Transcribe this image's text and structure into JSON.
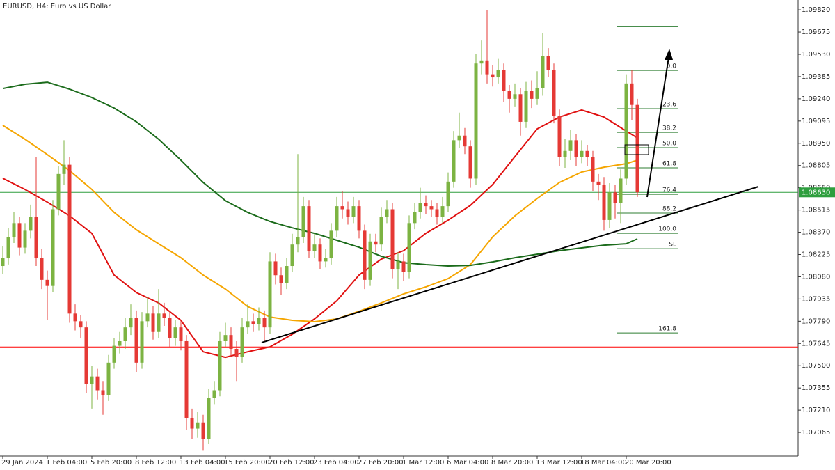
{
  "chart_data": {
    "type": "candlestick",
    "title": "EURUSD, H4:  Euro vs US Dollar",
    "up_color": "#7cb342",
    "down_color": "#e53935",
    "ylim": [
      1.06911,
      1.09884
    ],
    "yticks": [
      {
        "value": 1.0982,
        "label": "1.09820"
      },
      {
        "value": 1.09675,
        "label": "1.09675"
      },
      {
        "value": 1.0953,
        "label": "1.09530"
      },
      {
        "value": 1.09385,
        "label": "1.09385"
      },
      {
        "value": 1.0924,
        "label": "1.09240"
      },
      {
        "value": 1.09095,
        "label": "1.09095"
      },
      {
        "value": 1.0895,
        "label": "1.08950"
      },
      {
        "value": 1.08805,
        "label": "1.08805"
      },
      {
        "value": 1.0866,
        "label": "1.08660"
      },
      {
        "value": 1.08515,
        "label": "1.08515"
      },
      {
        "value": 1.0837,
        "label": "1.08370"
      },
      {
        "value": 1.08225,
        "label": "1.08225"
      },
      {
        "value": 1.0808,
        "label": "1.08080"
      },
      {
        "value": 1.07935,
        "label": "1.07935"
      },
      {
        "value": 1.0779,
        "label": "1.07790"
      },
      {
        "value": 1.07645,
        "label": "1.07645"
      },
      {
        "value": 1.075,
        "label": "1.07500"
      },
      {
        "value": 1.07355,
        "label": "1.07355"
      },
      {
        "value": 1.0721,
        "label": "1.07210"
      },
      {
        "value": 1.07065,
        "label": "1.07065"
      }
    ],
    "categories": [
      "29 Jan 2024",
      null,
      null,
      null,
      null,
      null,
      null,
      null,
      "1 Feb 04:00",
      null,
      null,
      null,
      null,
      null,
      null,
      null,
      "5 Feb 20:00",
      null,
      null,
      null,
      null,
      null,
      null,
      null,
      "8 Feb 12:00",
      null,
      null,
      null,
      null,
      null,
      null,
      null,
      "13 Feb 04:00",
      null,
      null,
      null,
      null,
      null,
      null,
      null,
      "15 Feb 20:00",
      null,
      null,
      null,
      null,
      null,
      null,
      null,
      "20 Feb 12:00",
      null,
      null,
      null,
      null,
      null,
      null,
      null,
      "23 Feb 04:00",
      null,
      null,
      null,
      null,
      null,
      null,
      null,
      "27 Feb 20:00",
      null,
      null,
      null,
      null,
      null,
      null,
      null,
      "1 Mar 12:00",
      null,
      null,
      null,
      null,
      null,
      null,
      null,
      "6 Mar 04:00",
      null,
      null,
      null,
      null,
      null,
      null,
      null,
      "8 Mar 20:00",
      null,
      null,
      null,
      null,
      null,
      null,
      null,
      "13 Mar 12:00",
      null,
      null,
      null,
      null,
      null,
      null,
      null,
      "18 Mar 04:00",
      null,
      null,
      null,
      null,
      null,
      null,
      null,
      "20 Mar 20:00",
      null,
      null
    ],
    "ohlc": [
      [
        1.0815,
        1.0828,
        1.081,
        1.082
      ],
      [
        1.082,
        1.084,
        1.0816,
        1.0834
      ],
      [
        1.0834,
        1.085,
        1.083,
        1.0843
      ],
      [
        1.0843,
        1.0847,
        1.0822,
        1.0827
      ],
      [
        1.0827,
        1.0843,
        1.0823,
        1.0838
      ],
      [
        1.0838,
        1.0855,
        1.0833,
        1.0847
      ],
      [
        1.0847,
        1.0886,
        1.0815,
        1.082
      ],
      [
        1.082,
        1.0826,
        1.08,
        1.0806
      ],
      [
        1.0806,
        1.0812,
        1.078,
        1.0802
      ],
      [
        1.0802,
        1.0858,
        1.0798,
        1.0852
      ],
      [
        1.0852,
        1.088,
        1.0848,
        1.0875
      ],
      [
        1.0875,
        1.0897,
        1.0868,
        1.0881
      ],
      [
        1.0881,
        1.0886,
        1.0778,
        1.0784
      ],
      [
        1.0784,
        1.079,
        1.0773,
        1.0779
      ],
      [
        1.0779,
        1.0783,
        1.0768,
        1.0775
      ],
      [
        1.0775,
        1.0779,
        1.0732,
        1.0738
      ],
      [
        1.0738,
        1.075,
        1.0722,
        1.0743
      ],
      [
        1.0743,
        1.0748,
        1.0728,
        1.0734
      ],
      [
        1.0734,
        1.074,
        1.0718,
        1.0731
      ],
      [
        1.0731,
        1.0757,
        1.0727,
        1.0752
      ],
      [
        1.0752,
        1.0768,
        1.0748,
        1.0763
      ],
      [
        1.0763,
        1.0772,
        1.0758,
        1.0766
      ],
      [
        1.0766,
        1.0781,
        1.0761,
        1.0775
      ],
      [
        1.0775,
        1.079,
        1.077,
        1.0781
      ],
      [
        1.0781,
        1.0786,
        1.0746,
        1.0752
      ],
      [
        1.0752,
        1.0785,
        1.0748,
        1.0779
      ],
      [
        1.0779,
        1.0795,
        1.0775,
        1.0784
      ],
      [
        1.0784,
        1.0789,
        1.0767,
        1.0772
      ],
      [
        1.0772,
        1.08,
        1.0768,
        1.0784
      ],
      [
        1.0784,
        1.0791,
        1.0776,
        1.0781
      ],
      [
        1.0781,
        1.0786,
        1.0762,
        1.0768
      ],
      [
        1.0768,
        1.078,
        1.0763,
        1.0775
      ],
      [
        1.0775,
        1.078,
        1.076,
        1.0766
      ],
      [
        1.0766,
        1.077,
        1.0708,
        1.0716
      ],
      [
        1.0716,
        1.0722,
        1.0702,
        1.0709
      ],
      [
        1.0709,
        1.072,
        1.0703,
        1.0713
      ],
      [
        1.0713,
        1.0718,
        1.0695,
        1.0702
      ],
      [
        1.0702,
        1.0735,
        1.0699,
        1.0729
      ],
      [
        1.0729,
        1.074,
        1.0725,
        1.0734
      ],
      [
        1.0734,
        1.0772,
        1.073,
        1.0766
      ],
      [
        1.0766,
        1.0778,
        1.0762,
        1.077
      ],
      [
        1.077,
        1.0775,
        1.0756,
        1.0761
      ],
      [
        1.0761,
        1.0766,
        1.074,
        1.0756
      ],
      [
        1.0756,
        1.0781,
        1.0752,
        1.0775
      ],
      [
        1.0775,
        1.079,
        1.0771,
        1.0779
      ],
      [
        1.0779,
        1.0784,
        1.0772,
        1.0777
      ],
      [
        1.0777,
        1.0788,
        1.0773,
        1.0781
      ],
      [
        1.0781,
        1.0786,
        1.0766,
        1.0775
      ],
      [
        1.0775,
        1.0824,
        1.0771,
        1.0818
      ],
      [
        1.0818,
        1.0823,
        1.0803,
        1.0809
      ],
      [
        1.0809,
        1.0814,
        1.0796,
        1.0804
      ],
      [
        1.0804,
        1.082,
        1.08,
        1.0815
      ],
      [
        1.0815,
        1.0836,
        1.0811,
        1.0829
      ],
      [
        1.0829,
        1.0888,
        1.0824,
        1.0834
      ],
      [
        1.0834,
        1.086,
        1.083,
        1.0854
      ],
      [
        1.0854,
        1.0858,
        1.082,
        1.0825
      ],
      [
        1.0825,
        1.0836,
        1.082,
        1.0829
      ],
      [
        1.0829,
        1.0833,
        1.0813,
        1.0818
      ],
      [
        1.0818,
        1.0826,
        1.0814,
        1.082
      ],
      [
        1.082,
        1.0843,
        1.0816,
        1.0838
      ],
      [
        1.0838,
        1.086,
        1.0834,
        1.0854
      ],
      [
        1.0854,
        1.0864,
        1.0846,
        1.0852
      ],
      [
        1.0852,
        1.0857,
        1.0842,
        1.0847
      ],
      [
        1.0847,
        1.086,
        1.0843,
        1.0854
      ],
      [
        1.0854,
        1.0858,
        1.0833,
        1.0838
      ],
      [
        1.0838,
        1.0842,
        1.08,
        1.0806
      ],
      [
        1.0806,
        1.0836,
        1.0802,
        1.0831
      ],
      [
        1.0831,
        1.0836,
        1.0824,
        1.0829
      ],
      [
        1.0829,
        1.0853,
        1.0825,
        1.0847
      ],
      [
        1.0847,
        1.0858,
        1.0843,
        1.0852
      ],
      [
        1.0852,
        1.0856,
        1.0807,
        1.0813
      ],
      [
        1.0813,
        1.0824,
        1.08,
        1.0818
      ],
      [
        1.0818,
        1.0823,
        1.0805,
        1.0811
      ],
      [
        1.0811,
        1.0848,
        1.0807,
        1.0843
      ],
      [
        1.0843,
        1.0856,
        1.0839,
        1.085
      ],
      [
        1.085,
        1.0866,
        1.0846,
        1.0856
      ],
      [
        1.0856,
        1.0861,
        1.0849,
        1.0854
      ],
      [
        1.0854,
        1.0858,
        1.0847,
        1.0852
      ],
      [
        1.0852,
        1.0856,
        1.0842,
        1.0847
      ],
      [
        1.0847,
        1.086,
        1.0843,
        1.0854
      ],
      [
        1.0854,
        1.0876,
        1.085,
        1.087
      ],
      [
        1.087,
        1.0903,
        1.0866,
        1.0897
      ],
      [
        1.0897,
        1.0915,
        1.0892,
        1.09
      ],
      [
        1.09,
        1.0905,
        1.0888,
        1.0893
      ],
      [
        1.0893,
        1.0897,
        1.0866,
        1.0872
      ],
      [
        1.0872,
        1.0953,
        1.0868,
        1.0947
      ],
      [
        1.0947,
        1.0962,
        1.094,
        1.0949
      ],
      [
        1.0949,
        1.0982,
        1.0934,
        1.094
      ],
      [
        1.094,
        1.0946,
        1.0932,
        1.0938
      ],
      [
        1.0938,
        1.095,
        1.0934,
        1.0943
      ],
      [
        1.0943,
        1.0947,
        1.0922,
        1.0929
      ],
      [
        1.0929,
        1.0933,
        1.0915,
        1.0924
      ],
      [
        1.0924,
        1.0934,
        1.0919,
        1.0927
      ],
      [
        1.0927,
        1.0931,
        1.09,
        1.0909
      ],
      [
        1.0909,
        1.0935,
        1.0905,
        1.0929
      ],
      [
        1.0929,
        1.0936,
        1.0918,
        1.0924
      ],
      [
        1.0924,
        1.0942,
        1.092,
        1.0931
      ],
      [
        1.0931,
        1.0967,
        1.0926,
        1.0952
      ],
      [
        1.0952,
        1.0957,
        1.0938,
        1.0943
      ],
      [
        1.0943,
        1.0947,
        1.0908,
        1.0913
      ],
      [
        1.0913,
        1.0917,
        1.088,
        1.0886
      ],
      [
        1.0886,
        1.0898,
        1.0879,
        1.089
      ],
      [
        1.089,
        1.0904,
        1.0884,
        1.0897
      ],
      [
        1.0897,
        1.0901,
        1.088,
        1.0886
      ],
      [
        1.0886,
        1.0897,
        1.0882,
        1.089
      ],
      [
        1.089,
        1.0894,
        1.088,
        1.0886
      ],
      [
        1.0886,
        1.089,
        1.0864,
        1.087
      ],
      [
        1.087,
        1.0875,
        1.0858,
        1.0868
      ],
      [
        1.0868,
        1.0873,
        1.0838,
        1.0845
      ],
      [
        1.0845,
        1.0869,
        1.084,
        1.0863
      ],
      [
        1.0863,
        1.0868,
        1.0846,
        1.0856
      ],
      [
        1.0856,
        1.0878,
        1.0843,
        1.0872
      ],
      [
        1.0872,
        1.094,
        1.0868,
        1.0934
      ],
      [
        1.0934,
        1.0943,
        1.091,
        1.092
      ],
      [
        1.092,
        1.0924,
        1.086,
        1.0863
      ]
    ],
    "ma_lines": [
      {
        "color": "#e01010",
        "x": [
          0,
          4,
          8,
          12,
          16,
          20,
          24,
          28,
          32,
          36,
          40,
          44,
          48,
          52,
          56,
          60,
          64,
          68,
          72,
          76,
          80,
          84,
          88,
          92,
          96,
          100,
          104,
          108,
          112,
          114
        ],
        "values": [
          1.08722,
          1.08649,
          1.08567,
          1.08477,
          1.08363,
          1.08091,
          1.07977,
          1.07909,
          1.07796,
          1.07591,
          1.07555,
          1.07591,
          1.07623,
          1.07705,
          1.07805,
          1.07923,
          1.08091,
          1.08195,
          1.0825,
          1.08363,
          1.08449,
          1.08545,
          1.08681,
          1.08863,
          1.09044,
          1.09121,
          1.09167,
          1.09121,
          1.0903,
          1.08985
        ]
      },
      {
        "color": "#f5a500",
        "x": [
          0,
          4,
          8,
          12,
          16,
          20,
          24,
          28,
          32,
          36,
          40,
          44,
          48,
          52,
          56,
          60,
          64,
          68,
          72,
          76,
          80,
          84,
          88,
          92,
          96,
          100,
          104,
          108,
          112,
          114
        ],
        "values": [
          1.09067,
          1.08976,
          1.08876,
          1.08772,
          1.08649,
          1.08499,
          1.08386,
          1.08295,
          1.08204,
          1.08091,
          1.08,
          1.07886,
          1.07818,
          1.07796,
          1.07787,
          1.07805,
          1.07855,
          1.07909,
          1.07968,
          1.08014,
          1.08068,
          1.08159,
          1.0834,
          1.08477,
          1.0859,
          1.08695,
          1.08763,
          1.08794,
          1.08817,
          1.0884
        ]
      },
      {
        "color": "#1b6b1b",
        "x": [
          0,
          4,
          8,
          12,
          16,
          20,
          24,
          28,
          32,
          36,
          40,
          44,
          48,
          52,
          56,
          60,
          64,
          68,
          72,
          76,
          80,
          84,
          88,
          92,
          96,
          100,
          104,
          108,
          112,
          114
        ],
        "values": [
          1.09307,
          1.09335,
          1.09348,
          1.09303,
          1.09248,
          1.0918,
          1.0909,
          1.08976,
          1.0884,
          1.08695,
          1.08576,
          1.08499,
          1.0844,
          1.08399,
          1.08363,
          1.08318,
          1.08272,
          1.08213,
          1.08172,
          1.08159,
          1.0815,
          1.08154,
          1.08177,
          1.08204,
          1.08227,
          1.0825,
          1.08268,
          1.08286,
          1.08295,
          1.08327
        ]
      }
    ],
    "levels": [
      {
        "value": 1.0762,
        "color": "#ff0000"
      }
    ],
    "current_price": {
      "value": 1.0863,
      "label": "1.08630",
      "color": "#2e9e3e"
    },
    "fib_color": "#2e7d32",
    "fib_levels": [
      {
        "value": 1.0971
      },
      {
        "value": 1.09425,
        "label": "0.0"
      },
      {
        "value": 1.09176,
        "label": "23.6"
      },
      {
        "value": 1.09021,
        "label": "38.2"
      },
      {
        "value": 1.08922,
        "label": "50.0"
      },
      {
        "value": 1.0879,
        "label": "61.8"
      },
      {
        "value": 1.08617,
        "label": "76.4"
      },
      {
        "value": 1.08495,
        "label": "88.2"
      },
      {
        "value": 1.08363,
        "label": "100.0"
      },
      {
        "value": 1.08263,
        "label": "SL"
      },
      {
        "value": 1.07714,
        "label": "161.8"
      }
    ]
  }
}
